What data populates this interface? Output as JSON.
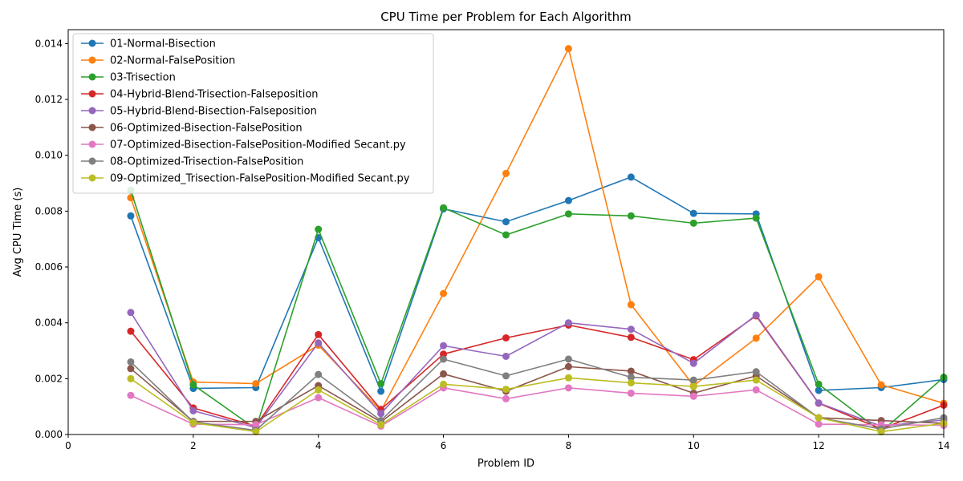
{
  "chart_data": {
    "type": "line",
    "title": "CPU Time per Problem for Each Algorithm",
    "xlabel": "Problem ID",
    "ylabel": "Avg CPU Time (s)",
    "xlim": [
      0,
      14
    ],
    "ylim": [
      0,
      0.0145
    ],
    "xticks": [
      0,
      2,
      4,
      6,
      8,
      10,
      12,
      14
    ],
    "xtick_labels": [
      "0",
      "2",
      "4",
      "6",
      "8",
      "10",
      "12",
      "14"
    ],
    "yticks": [
      0,
      0.002,
      0.004,
      0.006,
      0.008,
      0.01,
      0.012,
      0.014
    ],
    "ytick_labels": [
      "0.000",
      "0.002",
      "0.004",
      "0.006",
      "0.008",
      "0.010",
      "0.012",
      "0.014"
    ],
    "grid": false,
    "legend_position": "top-left",
    "x": [
      1,
      2,
      3,
      4,
      5,
      6,
      7,
      8,
      9,
      10,
      11,
      12,
      13,
      14
    ],
    "series": [
      {
        "name": "01-Normal-Bisection",
        "color": "#1f77b4",
        "values": [
          0.00783,
          0.00165,
          0.00168,
          0.00705,
          0.00155,
          0.00808,
          0.00762,
          0.00838,
          0.00922,
          0.00792,
          0.0079,
          0.00158,
          0.00168,
          0.00197
        ]
      },
      {
        "name": "02-Normal-FalsePosition",
        "color": "#ff7f0e",
        "values": [
          0.00848,
          0.00188,
          0.00182,
          0.0032,
          0.00085,
          0.00505,
          0.00935,
          0.01382,
          0.00465,
          0.00175,
          0.00345,
          0.00565,
          0.00178,
          0.00112
        ]
      },
      {
        "name": "03-Trisection",
        "color": "#2ca02c",
        "values": [
          0.00875,
          0.00178,
          0.0002,
          0.00735,
          0.00182,
          0.00812,
          0.00715,
          0.0079,
          0.00783,
          0.00757,
          0.00775,
          0.0018,
          0.0001,
          0.00205
        ]
      },
      {
        "name": "04-Hybrid-Blend-Trisection-Falseposition",
        "color": "#d62728",
        "values": [
          0.0037,
          0.00095,
          0.0003,
          0.00358,
          0.0009,
          0.00288,
          0.00346,
          0.00392,
          0.00348,
          0.00268,
          0.00425,
          0.00112,
          0.0002,
          0.00105
        ]
      },
      {
        "name": "05-Hybrid-Blend-Bisection-Falseposition",
        "color": "#9467bd",
        "values": [
          0.00437,
          0.00085,
          0.00025,
          0.00328,
          0.00075,
          0.00318,
          0.0028,
          0.004,
          0.00377,
          0.00255,
          0.00428,
          0.00113,
          0.0003,
          0.00052
        ]
      },
      {
        "name": "06-Optimized-Bisection-FalsePosition",
        "color": "#8c564b",
        "values": [
          0.00236,
          0.00047,
          0.00047,
          0.00175,
          0.00045,
          0.00217,
          0.00155,
          0.00243,
          0.00227,
          0.00148,
          0.0021,
          0.0006,
          0.0005,
          0.0004
        ]
      },
      {
        "name": "07-Optimized-Bisection-FalsePosition-Modified Secant.py",
        "color": "#e377c2",
        "values": [
          0.0014,
          0.00037,
          0.00035,
          0.00132,
          0.0003,
          0.00167,
          0.00128,
          0.00167,
          0.00148,
          0.00137,
          0.0016,
          0.00037,
          0.00035,
          0.00033
        ]
      },
      {
        "name": "08-Optimized-Trisection-FalsePosition",
        "color": "#7f7f7f",
        "values": [
          0.0026,
          0.00045,
          0.00015,
          0.00215,
          0.0005,
          0.0027,
          0.0021,
          0.0027,
          0.00205,
          0.00195,
          0.00225,
          0.0006,
          0.0002,
          0.0006
        ]
      },
      {
        "name": "09-Optimized_Trisection-FalsePosition-Modified Secant.py",
        "color": "#bcbd22",
        "values": [
          0.002,
          0.00042,
          0.0001,
          0.0016,
          0.00035,
          0.0018,
          0.00162,
          0.00203,
          0.00185,
          0.00172,
          0.00195,
          0.0006,
          0.0001,
          0.0004
        ]
      }
    ]
  }
}
